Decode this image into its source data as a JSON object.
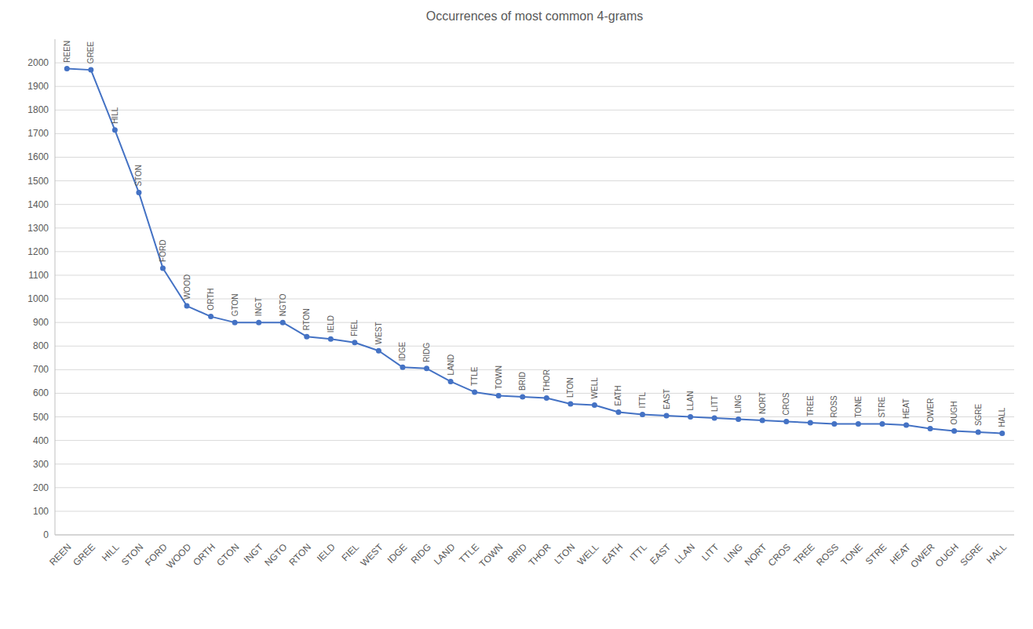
{
  "chart_data": {
    "type": "line",
    "title": "Occurrences of most common 4-grams",
    "categories": [
      "REEN",
      "GREE",
      "HILL",
      "STON",
      "FORD",
      "WOOD",
      "ORTH",
      "GTON",
      "INGT",
      "NGTO",
      "RTON",
      "IELD",
      "FIEL",
      "WEST",
      "IDGE",
      "RIDG",
      "LAND",
      "TTLE",
      "TOWN",
      "BRID",
      "THOR",
      "LTON",
      "WELL",
      "EATH",
      "ITTL",
      "EAST",
      "LLAN",
      "LITT",
      "LING",
      "NORT",
      "CROS",
      "TREE",
      "ROSS",
      "TONE",
      "STRE",
      "HEAT",
      "OWER",
      "OUGH",
      "SGRE",
      "HALL"
    ],
    "values": [
      1975,
      1970,
      1715,
      1450,
      1130,
      970,
      925,
      900,
      900,
      900,
      840,
      830,
      815,
      780,
      710,
      705,
      650,
      605,
      590,
      585,
      580,
      555,
      550,
      520,
      510,
      505,
      500,
      495,
      490,
      485,
      480,
      475,
      470,
      470,
      470,
      465,
      450,
      440,
      435,
      430
    ],
    "color": "#4472c4",
    "marker": "circle",
    "ylim": [
      0,
      2100
    ],
    "yticks": [
      0,
      100,
      200,
      300,
      400,
      500,
      600,
      700,
      800,
      900,
      1000,
      1100,
      1200,
      1300,
      1400,
      1500,
      1600,
      1700,
      1800,
      1900,
      2000
    ],
    "grid": true
  }
}
